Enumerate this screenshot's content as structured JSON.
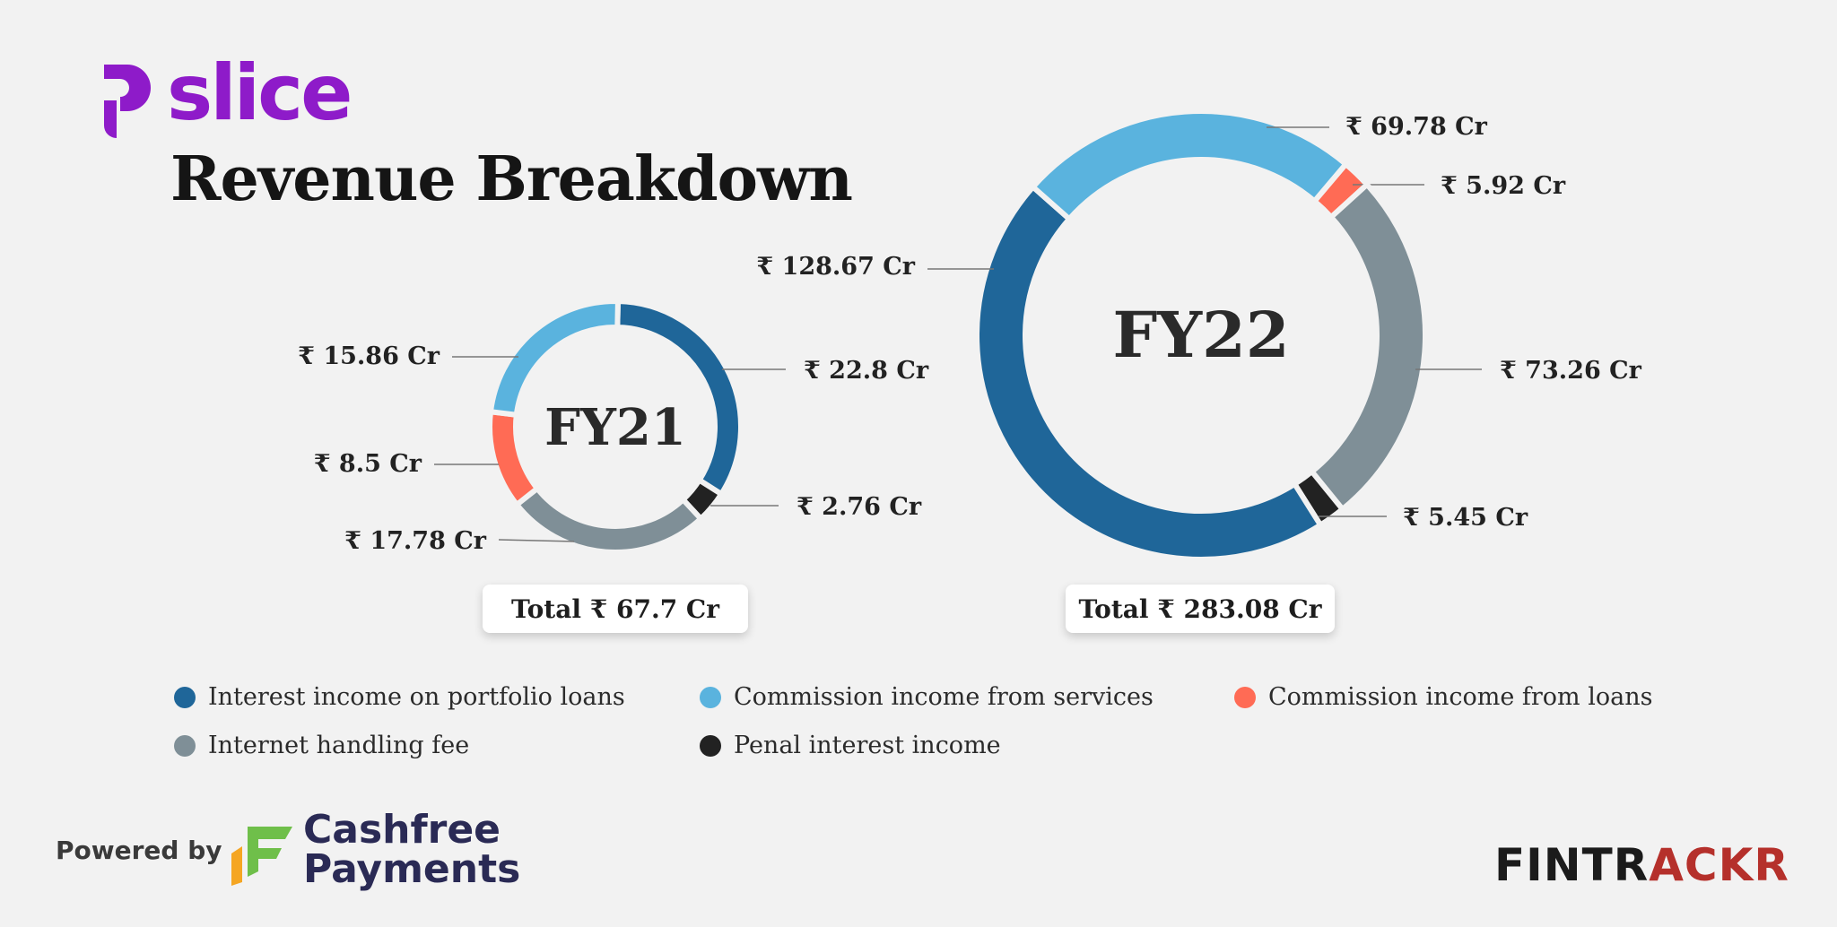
{
  "brand": {
    "name": "slice",
    "color": "#8e1bc9"
  },
  "title": "Revenue Breakdown",
  "colors": {
    "interest": "#1f6699",
    "commission_services": "#5ab3de",
    "commission_loans": "#ff6b55",
    "handling": "#7f8f97",
    "penal": "#222222"
  },
  "chart_data": [
    {
      "type": "pie",
      "subtype": "donut",
      "title": "FY21",
      "total_label": "Total ₹ 67.7 Cr",
      "slices": [
        {
          "name": "Interest income on portfolio loans",
          "value": 22.8,
          "label": "₹ 22.8 Cr",
          "color": "#1f6699"
        },
        {
          "name": "Penal interest income",
          "value": 2.76,
          "label": "₹ 2.76 Cr",
          "color": "#222222"
        },
        {
          "name": "Internet handling fee",
          "value": 17.78,
          "label": "₹ 17.78 Cr",
          "color": "#7f8f97"
        },
        {
          "name": "Commission income from loans",
          "value": 8.5,
          "label": "₹ 8.5 Cr",
          "color": "#ff6b55"
        },
        {
          "name": "Commission income from services",
          "value": 15.86,
          "label": "₹ 15.86 Cr",
          "color": "#5ab3de"
        }
      ]
    },
    {
      "type": "pie",
      "subtype": "donut",
      "title": "FY22",
      "total_label": "Total ₹ 283.08 Cr",
      "slices": [
        {
          "name": "Commission income from loans",
          "value": 5.92,
          "label": "₹ 5.92 Cr",
          "color": "#ff6b55"
        },
        {
          "name": "Internet handling fee",
          "value": 73.26,
          "label": "₹ 73.26 Cr",
          "color": "#7f8f97"
        },
        {
          "name": "Penal interest income",
          "value": 5.45,
          "label": "₹ 5.45 Cr",
          "color": "#222222"
        },
        {
          "name": "Interest income on portfolio loans",
          "value": 128.67,
          "label": "₹ 128.67 Cr",
          "color": "#1f6699"
        },
        {
          "name": "Commission income from services",
          "value": 69.78,
          "label": "₹ 69.78 Cr",
          "color": "#5ab3de"
        }
      ]
    }
  ],
  "legend": [
    {
      "label": "Interest income on portfolio loans",
      "color": "#1f6699"
    },
    {
      "label": "Commission income from services",
      "color": "#5ab3de"
    },
    {
      "label": "Commission income from loans",
      "color": "#ff6b55"
    },
    {
      "label": "Internet handling fee",
      "color": "#7f8f97"
    },
    {
      "label": "Penal interest income",
      "color": "#222222"
    }
  ],
  "footer": {
    "powered_by": "Powered by",
    "partner_line1": "Cashfree",
    "partner_line2": "Payments",
    "fintrackr_a": "FINTR",
    "fintrackr_b": "ACKR"
  }
}
